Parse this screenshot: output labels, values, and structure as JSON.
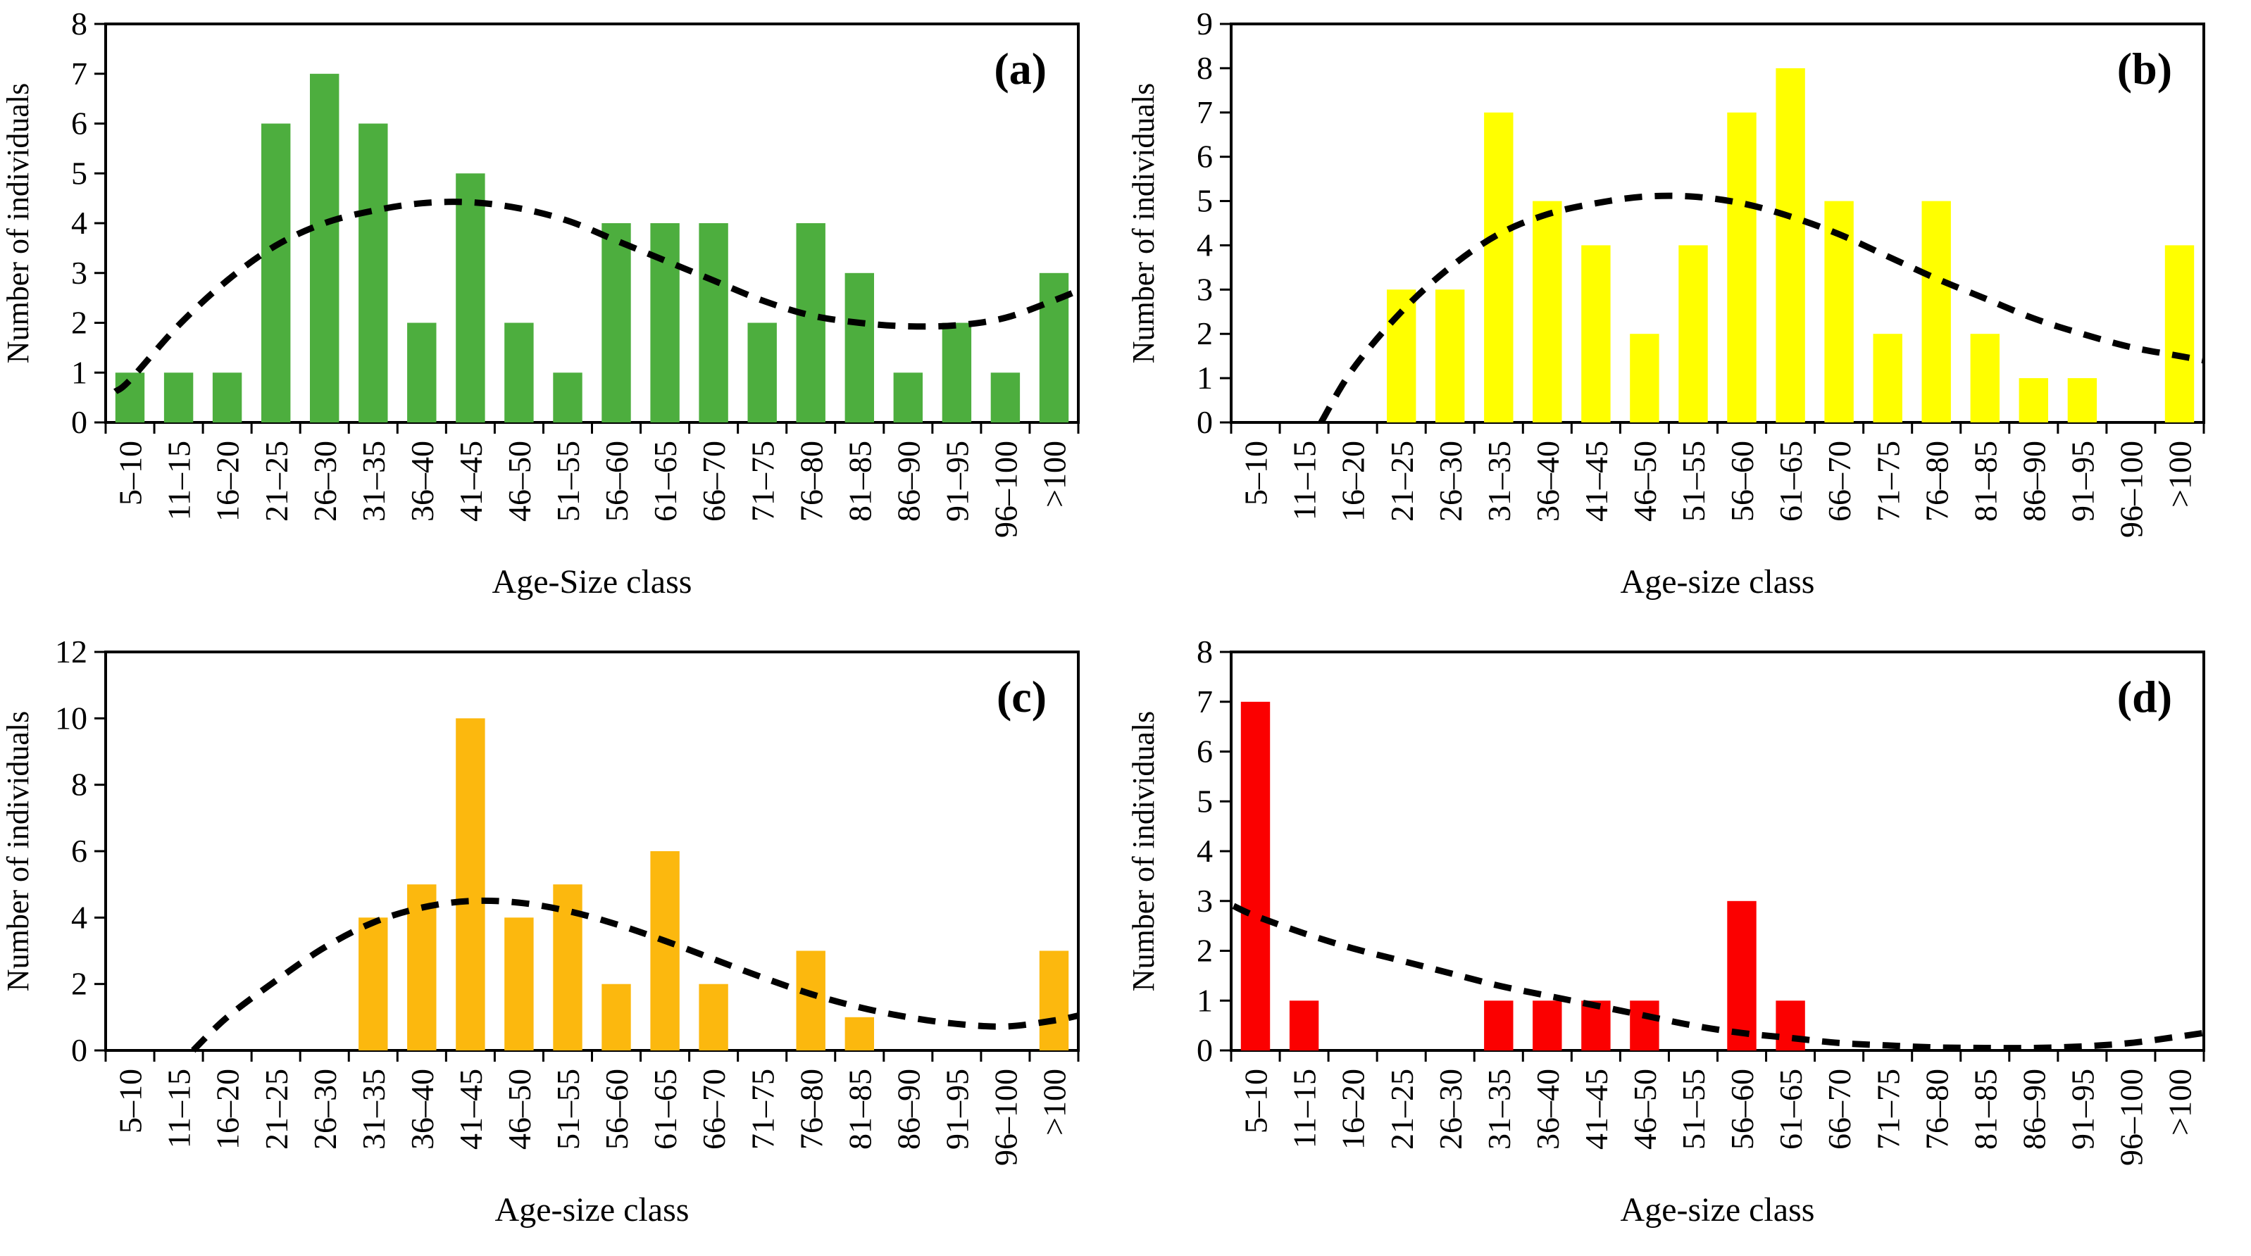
{
  "figure": {
    "background": "#ffffff",
    "axis_color": "#000000",
    "trend_style": "dashed"
  },
  "chart_data": [
    {
      "panel_label": "(a)",
      "type": "bar",
      "bar_color": "#4dae3e",
      "title": "",
      "xlabel": "Age-Size class",
      "ylabel": "Number of individuals",
      "ylim": [
        0,
        8
      ],
      "ytick_step": 1,
      "grid": false,
      "categories": [
        "5–10",
        "11–15",
        "16–20",
        "21–25",
        "26–30",
        "31–35",
        "36–40",
        "41–45",
        "46–50",
        "51–55",
        "56–60",
        "61–65",
        "66–70",
        "71–75",
        "76–80",
        "81–85",
        "86–90",
        "91–95",
        "96–100",
        ">100"
      ],
      "values": [
        1,
        1,
        1,
        6,
        7,
        6,
        2,
        5,
        2,
        1,
        4,
        4,
        4,
        2,
        4,
        3,
        1,
        2,
        1,
        3
      ],
      "trend": {
        "style": "dashed",
        "color": "#000000",
        "points": [
          [
            -0.3,
            0.62
          ],
          [
            0,
            0.85
          ],
          [
            1,
            1.95
          ],
          [
            2,
            2.85
          ],
          [
            3,
            3.55
          ],
          [
            4,
            4.0
          ],
          [
            5,
            4.25
          ],
          [
            6,
            4.4
          ],
          [
            7,
            4.42
          ],
          [
            8,
            4.3
          ],
          [
            9,
            4.05
          ],
          [
            10,
            3.65
          ],
          [
            11,
            3.25
          ],
          [
            12,
            2.85
          ],
          [
            13,
            2.45
          ],
          [
            14,
            2.15
          ],
          [
            15,
            2.0
          ],
          [
            16,
            1.93
          ],
          [
            17,
            1.95
          ],
          [
            18,
            2.1
          ],
          [
            19,
            2.45
          ],
          [
            19.5,
            2.65
          ]
        ]
      }
    },
    {
      "panel_label": "(b)",
      "type": "bar",
      "bar_color": "#ffff00",
      "title": "",
      "xlabel": "Age-size class",
      "ylabel": "Number of individuals",
      "ylim": [
        0,
        9
      ],
      "ytick_step": 1,
      "grid": false,
      "categories": [
        "5–10",
        "11–15",
        "16–20",
        "21–25",
        "26–30",
        "31–35",
        "36–40",
        "41–45",
        "46–50",
        "51–55",
        "56–60",
        "61–65",
        "66–70",
        "71–75",
        "76–80",
        "81–85",
        "86–90",
        "91–95",
        "96–100",
        ">100"
      ],
      "values": [
        0,
        0,
        0,
        3,
        3,
        7,
        5,
        4,
        2,
        4,
        7,
        8,
        5,
        2,
        5,
        2,
        1,
        1,
        0,
        4
      ],
      "trend": {
        "style": "dashed",
        "color": "#000000",
        "points": [
          [
            1.35,
            0
          ],
          [
            2,
            1.2
          ],
          [
            3,
            2.5
          ],
          [
            4,
            3.5
          ],
          [
            5,
            4.25
          ],
          [
            6,
            4.7
          ],
          [
            7,
            4.95
          ],
          [
            8,
            5.1
          ],
          [
            9,
            5.1
          ],
          [
            10,
            4.95
          ],
          [
            11,
            4.65
          ],
          [
            12,
            4.25
          ],
          [
            13,
            3.75
          ],
          [
            14,
            3.25
          ],
          [
            15,
            2.8
          ],
          [
            16,
            2.35
          ],
          [
            17,
            2.0
          ],
          [
            18,
            1.7
          ],
          [
            19,
            1.5
          ],
          [
            19.5,
            1.4
          ]
        ]
      }
    },
    {
      "panel_label": "(c)",
      "type": "bar",
      "bar_color": "#fcb80e",
      "title": "",
      "xlabel": "Age-size class",
      "ylabel": "Number of individuals",
      "ylim": [
        0,
        12
      ],
      "ytick_step": 2,
      "grid": false,
      "categories": [
        "5–10",
        "11–15",
        "16–20",
        "21–25",
        "26–30",
        "31–35",
        "36–40",
        "41–45",
        "46–50",
        "51–55",
        "56–60",
        "61–65",
        "66–70",
        "71–75",
        "76–80",
        "81–85",
        "86–90",
        "91–95",
        "96–100",
        ">100"
      ],
      "values": [
        0,
        0,
        0,
        0,
        0,
        4,
        5,
        10,
        4,
        5,
        2,
        6,
        2,
        0,
        3,
        1,
        0,
        0,
        0,
        3
      ],
      "trend": {
        "style": "dashed",
        "color": "#000000",
        "points": [
          [
            1.3,
            0
          ],
          [
            2,
            1.0
          ],
          [
            3,
            2.1
          ],
          [
            4,
            3.1
          ],
          [
            5,
            3.85
          ],
          [
            6,
            4.3
          ],
          [
            7,
            4.5
          ],
          [
            8,
            4.45
          ],
          [
            9,
            4.2
          ],
          [
            10,
            3.8
          ],
          [
            11,
            3.3
          ],
          [
            12,
            2.75
          ],
          [
            13,
            2.2
          ],
          [
            14,
            1.7
          ],
          [
            15,
            1.3
          ],
          [
            16,
            1.0
          ],
          [
            17,
            0.8
          ],
          [
            18,
            0.72
          ],
          [
            19,
            0.9
          ],
          [
            19.5,
            1.05
          ]
        ]
      }
    },
    {
      "panel_label": "(d)",
      "type": "bar",
      "bar_color": "#fb0000",
      "title": "",
      "xlabel": "Age-size class",
      "ylabel": "Number of individuals",
      "ylim": [
        0,
        8
      ],
      "ytick_step": 1,
      "grid": false,
      "categories": [
        "5–10",
        "11–15",
        "16–20",
        "21–25",
        "26–30",
        "31–35",
        "36–40",
        "41–45",
        "46–50",
        "51–55",
        "56–60",
        "61–65",
        "66–70",
        "71–75",
        "76–80",
        "81–85",
        "86–90",
        "91–95",
        "96–100",
        ">100"
      ],
      "values": [
        7,
        1,
        0,
        0,
        0,
        1,
        1,
        1,
        1,
        0,
        3,
        1,
        0,
        0,
        0,
        0,
        0,
        0,
        0,
        0
      ],
      "trend": {
        "style": "dashed",
        "color": "#000000",
        "points": [
          [
            -0.45,
            2.9
          ],
          [
            0,
            2.7
          ],
          [
            1,
            2.35
          ],
          [
            2,
            2.05
          ],
          [
            3,
            1.8
          ],
          [
            4,
            1.55
          ],
          [
            5,
            1.3
          ],
          [
            6,
            1.1
          ],
          [
            7,
            0.9
          ],
          [
            8,
            0.7
          ],
          [
            9,
            0.5
          ],
          [
            10,
            0.35
          ],
          [
            11,
            0.25
          ],
          [
            12,
            0.15
          ],
          [
            13,
            0.1
          ],
          [
            14,
            0.06
          ],
          [
            15,
            0.05
          ],
          [
            16,
            0.05
          ],
          [
            17,
            0.08
          ],
          [
            18,
            0.15
          ],
          [
            19,
            0.28
          ],
          [
            19.5,
            0.35
          ]
        ]
      }
    }
  ]
}
